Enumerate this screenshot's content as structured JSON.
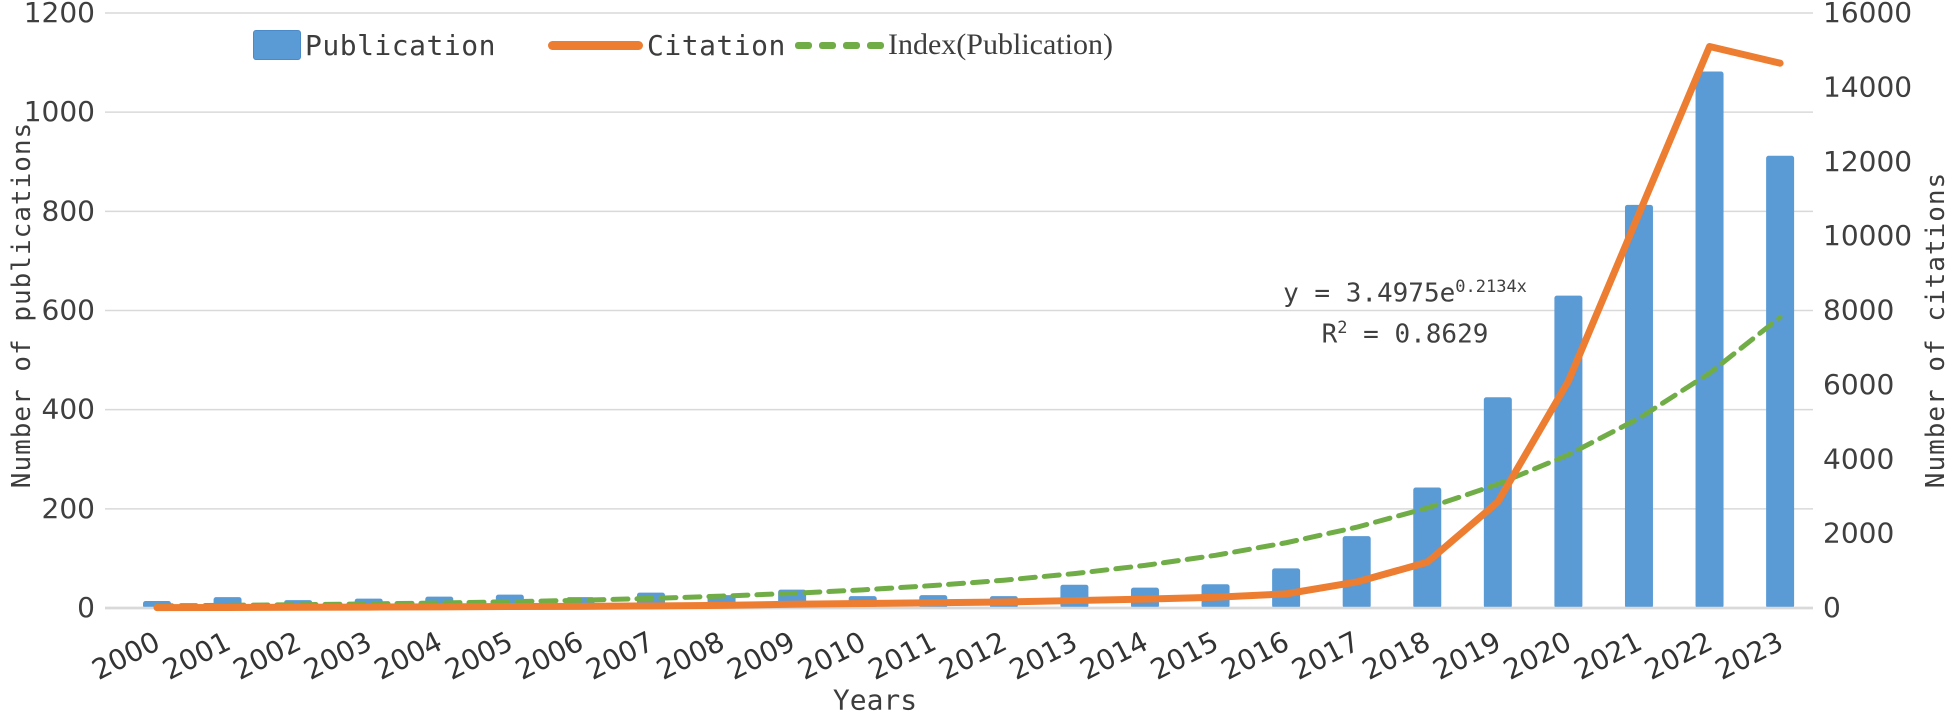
{
  "chart_data": {
    "type": "combo-bar-line",
    "x": [
      2000,
      2001,
      2002,
      2003,
      2004,
      2005,
      2006,
      2007,
      2008,
      2009,
      2010,
      2011,
      2012,
      2013,
      2014,
      2015,
      2016,
      2017,
      2018,
      2019,
      2020,
      2021,
      2022,
      2023
    ],
    "series": [
      {
        "name": "Publication",
        "type": "bar",
        "axis": "left",
        "color": "#5B9BD5",
        "values": [
          14,
          22,
          16,
          19,
          23,
          27,
          22,
          31,
          26,
          37,
          24,
          26,
          24,
          47,
          41,
          48,
          80,
          145,
          243,
          425,
          630,
          813,
          1082,
          912
        ]
      },
      {
        "name": "Citation",
        "type": "line",
        "axis": "right",
        "color": "#ED7D31",
        "values": [
          10,
          15,
          20,
          25,
          30,
          40,
          45,
          55,
          70,
          100,
          120,
          140,
          160,
          200,
          240,
          290,
          380,
          700,
          1230,
          2850,
          6100,
          10600,
          15100,
          14650
        ]
      },
      {
        "name": "Index(Publication)",
        "type": "dashed-line",
        "axis": "left",
        "color": "#70AD47",
        "values": [
          4.3,
          5.4,
          6.6,
          8.2,
          10.2,
          12.6,
          15.6,
          19.3,
          23.9,
          29.5,
          36.6,
          45.3,
          56.0,
          69.4,
          85.9,
          106.3,
          131.6,
          162.9,
          201.7,
          249.7,
          309.1,
          382.6,
          473.6,
          586.3
        ]
      }
    ],
    "left_axis": {
      "label": "Number of publications",
      "min": 0,
      "max": 1200,
      "step": 200
    },
    "right_axis": {
      "label": "Number of citations",
      "min": 0,
      "max": 16000,
      "step": 2000
    },
    "x_axis": {
      "label": "Years"
    },
    "trendline_equation": "y = 3.4975e^(0.2134x)",
    "r_squared": "R^2 = 0.8629",
    "legend_position": "top",
    "grid": "horizontal"
  },
  "legend": {
    "items": [
      {
        "label": "Publication",
        "marker": "bar-swatch",
        "color": "#5B9BD5"
      },
      {
        "label": "Citation",
        "marker": "line-swatch",
        "color": "#ED7D31"
      },
      {
        "label": "Index(Publication)",
        "marker": "dashed-swatch",
        "color": "#70AD47"
      }
    ]
  },
  "annotation": {
    "eq_base": "y = 3.4975e",
    "eq_exp": "0.2134x",
    "r2_base": "R",
    "r2_sup": "2",
    "r2_rest": " = 0.8629"
  },
  "titles": {
    "left_axis": "Number of publications",
    "right_axis": "Number of citations",
    "x_axis": "Years"
  },
  "colors": {
    "bar": "#5B9BD5",
    "citation_line": "#ED7D31",
    "index_line": "#70AD47",
    "gridline": "#D9D9D9",
    "tick_text": "#3f3f3f"
  }
}
